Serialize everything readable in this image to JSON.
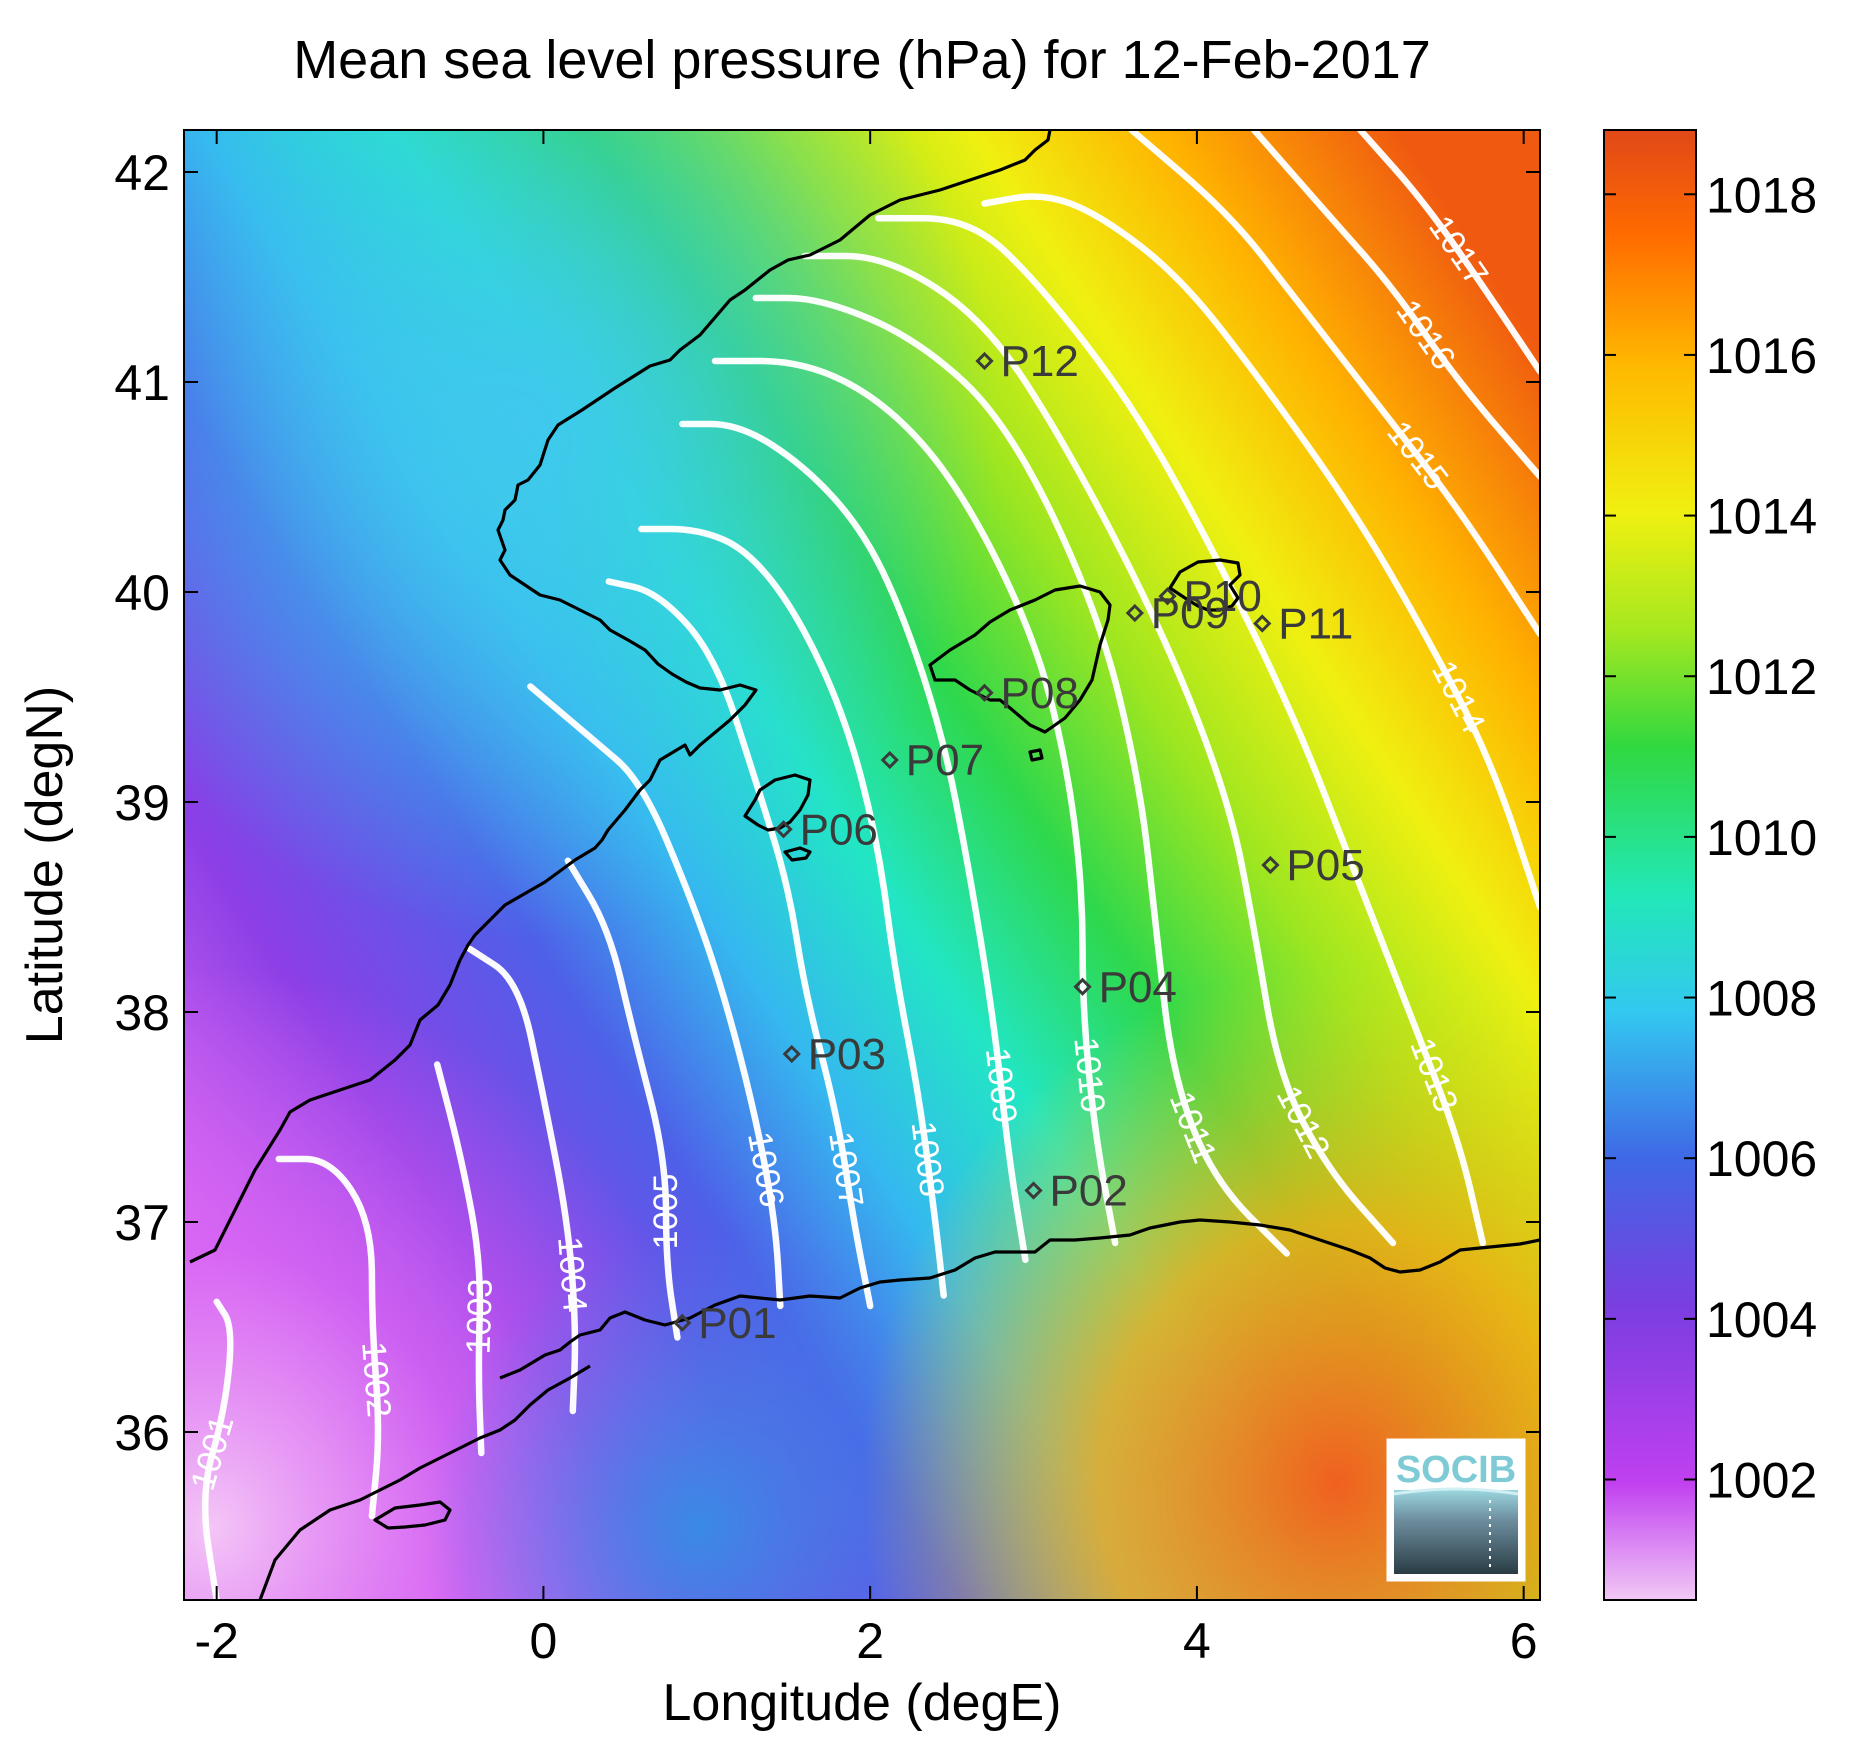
{
  "chart_data": {
    "type": "heatmap",
    "title": "Mean sea level pressure (hPa) for 12-Feb-2017",
    "xlabel": "Longitude (degE)",
    "ylabel": "Latitude (degN)",
    "xlim": [
      -2.2,
      6.1
    ],
    "ylim": [
      35.2,
      42.2
    ],
    "x_ticks": [
      "-2",
      "0",
      "2",
      "4",
      "6"
    ],
    "y_ticks": [
      "36",
      "37",
      "38",
      "39",
      "40",
      "41",
      "42"
    ],
    "colorbar": {
      "range": [
        1000.5,
        1018.8
      ],
      "ticks": [
        "1002",
        "1004",
        "1006",
        "1008",
        "1010",
        "1012",
        "1014",
        "1016",
        "1018"
      ],
      "colormap": [
        "#f2c8f5",
        "#c040f0",
        "#7a3ee0",
        "#3f68e6",
        "#33c8f0",
        "#22e8b8",
        "#30d840",
        "#a6e81f",
        "#f0f010",
        "#ffb800",
        "#ff6a00",
        "#e04818"
      ]
    },
    "contours": [
      {
        "level": "1001",
        "points": [
          [
            -2.0,
            35.2
          ],
          [
            -2.1,
            35.7
          ],
          [
            -1.95,
            36.1
          ],
          [
            -1.9,
            36.5
          ],
          [
            -2.0,
            36.62
          ]
        ]
      },
      {
        "level": "1002",
        "points": [
          [
            -1.05,
            35.6
          ],
          [
            -1.0,
            36.0
          ],
          [
            -1.05,
            36.5
          ],
          [
            -1.05,
            37.0
          ],
          [
            -1.3,
            37.3
          ],
          [
            -1.62,
            37.3
          ]
        ]
      },
      {
        "level": "1003",
        "points": [
          [
            -0.38,
            35.9
          ],
          [
            -0.4,
            36.3
          ],
          [
            -0.38,
            36.8
          ],
          [
            -0.5,
            37.3
          ],
          [
            -0.65,
            37.75
          ]
        ]
      },
      {
        "level": "1004",
        "points": [
          [
            0.18,
            36.1
          ],
          [
            0.2,
            36.5
          ],
          [
            0.15,
            37.0
          ],
          [
            0.0,
            37.6
          ],
          [
            -0.15,
            38.15
          ],
          [
            -0.45,
            38.3
          ]
        ]
      },
      {
        "level": "1005",
        "points": [
          [
            0.82,
            36.45
          ],
          [
            0.75,
            36.8
          ],
          [
            0.75,
            37.3
          ],
          [
            0.55,
            37.9
          ],
          [
            0.4,
            38.4
          ],
          [
            0.15,
            38.72
          ]
        ]
      },
      {
        "level": "1006",
        "points": [
          [
            1.45,
            36.6
          ],
          [
            1.42,
            37.0
          ],
          [
            1.3,
            37.5
          ],
          [
            1.1,
            38.1
          ],
          [
            0.9,
            38.55
          ],
          [
            0.6,
            39.1
          ],
          [
            0.3,
            39.3
          ],
          [
            -0.08,
            39.55
          ]
        ]
      },
      {
        "level": "1007",
        "points": [
          [
            2.0,
            36.6
          ],
          [
            1.9,
            37.0
          ],
          [
            1.8,
            37.5
          ],
          [
            1.6,
            38.1
          ],
          [
            1.5,
            38.6
          ],
          [
            1.3,
            39.1
          ],
          [
            1.05,
            39.7
          ],
          [
            0.7,
            40.0
          ],
          [
            0.4,
            40.05
          ]
        ]
      },
      {
        "level": "1008",
        "points": [
          [
            2.45,
            36.65
          ],
          [
            2.4,
            37.0
          ],
          [
            2.3,
            37.6
          ],
          [
            2.15,
            38.2
          ],
          [
            2.05,
            38.8
          ],
          [
            1.85,
            39.4
          ],
          [
            1.55,
            39.9
          ],
          [
            1.25,
            40.2
          ],
          [
            0.95,
            40.3
          ],
          [
            0.6,
            40.3
          ]
        ]
      },
      {
        "level": "1009",
        "points": [
          [
            2.95,
            36.82
          ],
          [
            2.85,
            37.3
          ],
          [
            2.75,
            38.0
          ],
          [
            2.6,
            38.7
          ],
          [
            2.45,
            39.3
          ],
          [
            2.2,
            39.9
          ],
          [
            1.95,
            40.3
          ],
          [
            1.6,
            40.6
          ],
          [
            1.2,
            40.8
          ],
          [
            0.85,
            40.8
          ]
        ]
      },
      {
        "level": "1010",
        "points": [
          [
            3.5,
            36.9
          ],
          [
            3.38,
            37.4
          ],
          [
            3.3,
            38.0
          ],
          [
            3.3,
            38.6
          ],
          [
            3.2,
            39.2
          ],
          [
            3.0,
            39.8
          ],
          [
            2.55,
            40.5
          ],
          [
            2.1,
            40.9
          ],
          [
            1.6,
            41.1
          ],
          [
            1.05,
            41.1
          ]
        ]
      },
      {
        "level": "1011",
        "points": [
          [
            4.55,
            36.85
          ],
          [
            4.1,
            37.2
          ],
          [
            3.85,
            37.7
          ],
          [
            3.75,
            38.4
          ],
          [
            3.65,
            39.1
          ],
          [
            3.4,
            39.9
          ],
          [
            2.85,
            40.8
          ],
          [
            2.3,
            41.2
          ],
          [
            1.7,
            41.4
          ],
          [
            1.3,
            41.4
          ]
        ]
      },
      {
        "level": "1012",
        "points": [
          [
            5.2,
            36.9
          ],
          [
            4.8,
            37.25
          ],
          [
            4.5,
            37.7
          ],
          [
            4.35,
            38.4
          ],
          [
            4.2,
            39.0
          ],
          [
            3.8,
            39.8
          ],
          [
            3.2,
            40.7
          ],
          [
            2.7,
            41.3
          ],
          [
            2.1,
            41.6
          ],
          [
            1.6,
            41.6
          ]
        ]
      },
      {
        "level": "1013",
        "points": [
          [
            5.75,
            36.9
          ],
          [
            5.6,
            37.4
          ],
          [
            5.3,
            38.0
          ],
          [
            4.95,
            38.7
          ],
          [
            4.6,
            39.4
          ],
          [
            4.1,
            40.2
          ],
          [
            3.6,
            40.9
          ],
          [
            3.0,
            41.5
          ],
          [
            2.6,
            41.78
          ],
          [
            2.05,
            41.78
          ]
        ]
      },
      {
        "level": "1014",
        "points": [
          [
            6.1,
            38.5
          ],
          [
            5.8,
            39.2
          ],
          [
            5.4,
            39.8
          ],
          [
            4.95,
            40.4
          ],
          [
            4.4,
            41.0
          ],
          [
            3.9,
            41.5
          ],
          [
            3.4,
            41.8
          ],
          [
            3.05,
            41.9
          ],
          [
            2.7,
            41.85
          ]
        ]
      },
      {
        "level": "1015",
        "points": [
          [
            6.1,
            39.8
          ],
          [
            5.6,
            40.4
          ],
          [
            5.1,
            40.9
          ],
          [
            4.6,
            41.4
          ],
          [
            4.2,
            41.8
          ],
          [
            3.6,
            42.2
          ]
        ]
      },
      {
        "level": "1016",
        "points": [
          [
            6.1,
            40.55
          ],
          [
            5.6,
            41.0
          ],
          [
            5.2,
            41.45
          ],
          [
            4.8,
            41.8
          ],
          [
            4.35,
            42.2
          ]
        ]
      },
      {
        "level": "1017",
        "points": [
          [
            6.1,
            41.05
          ],
          [
            5.8,
            41.4
          ],
          [
            5.4,
            41.85
          ],
          [
            5.0,
            42.2
          ]
        ]
      }
    ],
    "stations": [
      {
        "id": "P01",
        "lon": 0.85,
        "lat": 36.52
      },
      {
        "id": "P02",
        "lon": 3.0,
        "lat": 37.15
      },
      {
        "id": "P03",
        "lon": 1.52,
        "lat": 37.8
      },
      {
        "id": "P04",
        "lon": 3.3,
        "lat": 38.12
      },
      {
        "id": "P05",
        "lon": 4.45,
        "lat": 38.7
      },
      {
        "id": "P06",
        "lon": 1.47,
        "lat": 38.87
      },
      {
        "id": "P07",
        "lon": 2.12,
        "lat": 39.2
      },
      {
        "id": "P08",
        "lon": 2.7,
        "lat": 39.52
      },
      {
        "id": "P09",
        "lon": 3.62,
        "lat": 39.9
      },
      {
        "id": "P10",
        "lon": 3.82,
        "lat": 39.98
      },
      {
        "id": "P11",
        "lon": 4.4,
        "lat": 39.85
      },
      {
        "id": "P12",
        "lon": 2.7,
        "lat": 41.1
      }
    ],
    "logo": "SOCIB"
  }
}
